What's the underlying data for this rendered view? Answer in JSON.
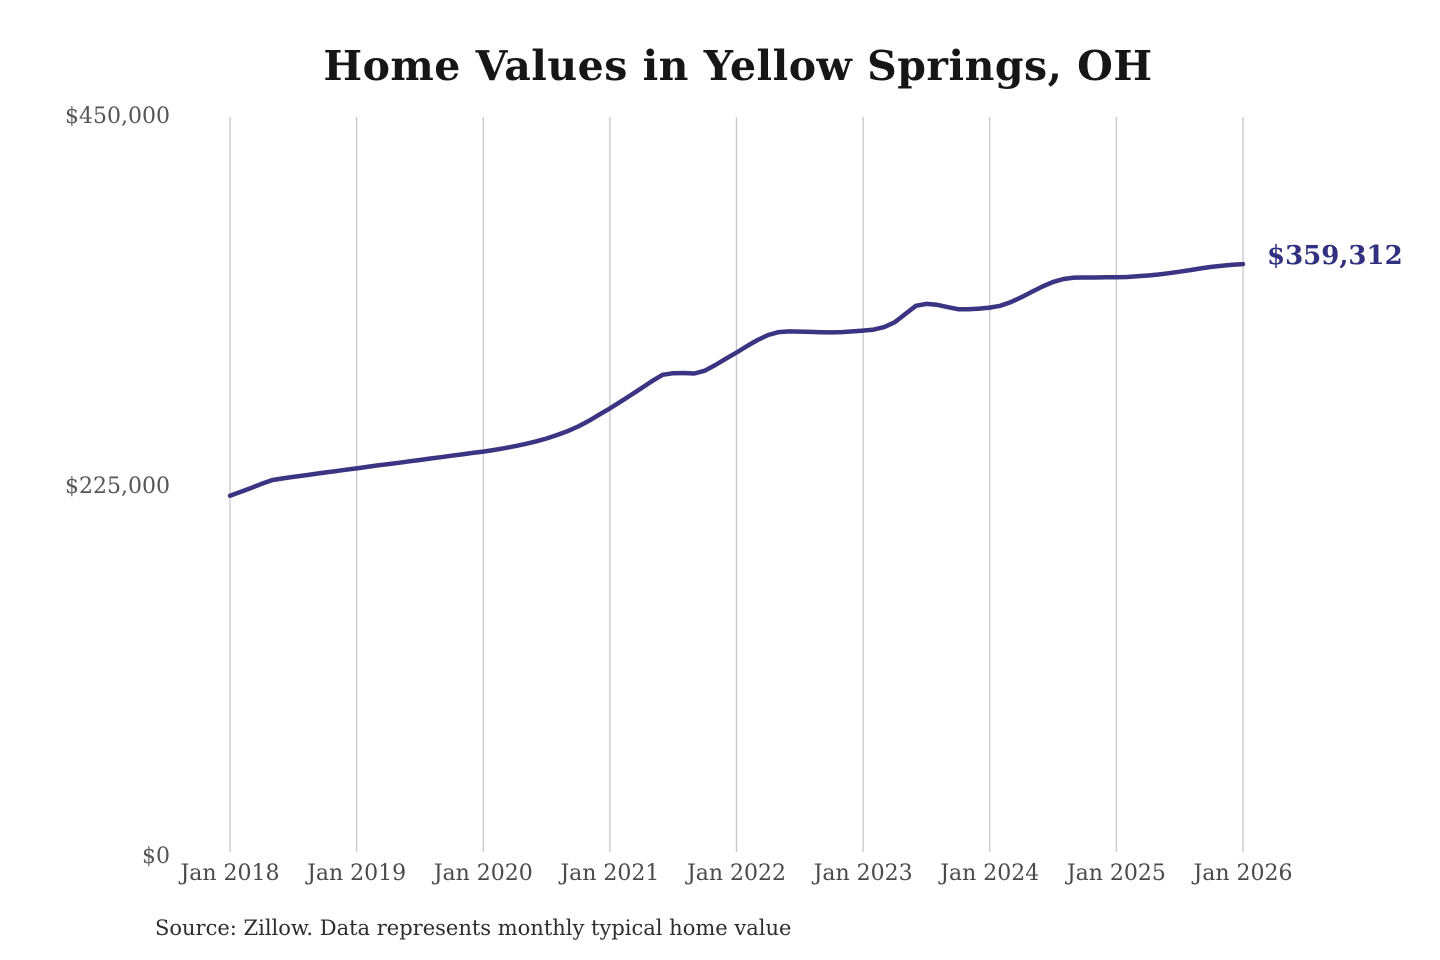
{
  "title": "Home Values in Yellow Springs, OH",
  "source_note": "Source: Zillow. Data represents monthly typical home value",
  "end_value_label": "$359,312",
  "colors": {
    "line": "#3a3482",
    "end_label": "#32317f",
    "gridline": "#cbcbcb",
    "y_tick_text": "#555555",
    "x_tick_text": "#4a4a4a",
    "title_text": "#161616",
    "source_text": "#2d2d2d",
    "background": "#ffffff"
  },
  "chart_data": {
    "type": "line",
    "title": "Home Values in Yellow Springs, OH",
    "xlabel": "",
    "ylabel": "",
    "unit": "USD",
    "ylim": [
      0,
      450000
    ],
    "y_ticks": [
      0,
      225000,
      450000
    ],
    "y_tick_labels": [
      "$0",
      "$225,000",
      "$450,000"
    ],
    "x_tick_labels": [
      "Jan 2018",
      "Jan 2019",
      "Jan 2020",
      "Jan 2021",
      "Jan 2022",
      "Jan 2023",
      "Jan 2024",
      "Jan 2025",
      "Jan 2026"
    ],
    "grid": "vertical-only",
    "legend": "none",
    "end_annotation": {
      "text": "$359,312",
      "value": 359312
    },
    "series": [
      {
        "name": "Monthly typical home value",
        "start": "Jan 2018",
        "end": "Jan 2026",
        "interval": "monthly",
        "values": [
          218500,
          220800,
          223200,
          225700,
          228000,
          229000,
          229900,
          230800,
          231700,
          232600,
          233400,
          234300,
          235100,
          236000,
          236900,
          237700,
          238500,
          239400,
          240200,
          241100,
          241900,
          242800,
          243600,
          244500,
          245300,
          246300,
          247400,
          248600,
          250000,
          251500,
          253300,
          255400,
          257800,
          260600,
          264000,
          267800,
          271600,
          275600,
          279700,
          283900,
          288200,
          292000,
          293000,
          293100,
          292800,
          294500,
          298000,
          301800,
          305500,
          309500,
          313200,
          316200,
          318000,
          318400,
          318300,
          318100,
          317900,
          317800,
          318000,
          318400,
          318900,
          319500,
          321000,
          324000,
          329000,
          334000,
          335100,
          334600,
          333200,
          331900,
          331900,
          332300,
          332900,
          334000,
          336200,
          339200,
          342500,
          345700,
          348500,
          350300,
          351100,
          351200,
          351200,
          351300,
          351300,
          351500,
          351900,
          352400,
          353000,
          353800,
          354700,
          355700,
          356700,
          357600,
          358300,
          358900,
          359312
        ]
      }
    ]
  }
}
